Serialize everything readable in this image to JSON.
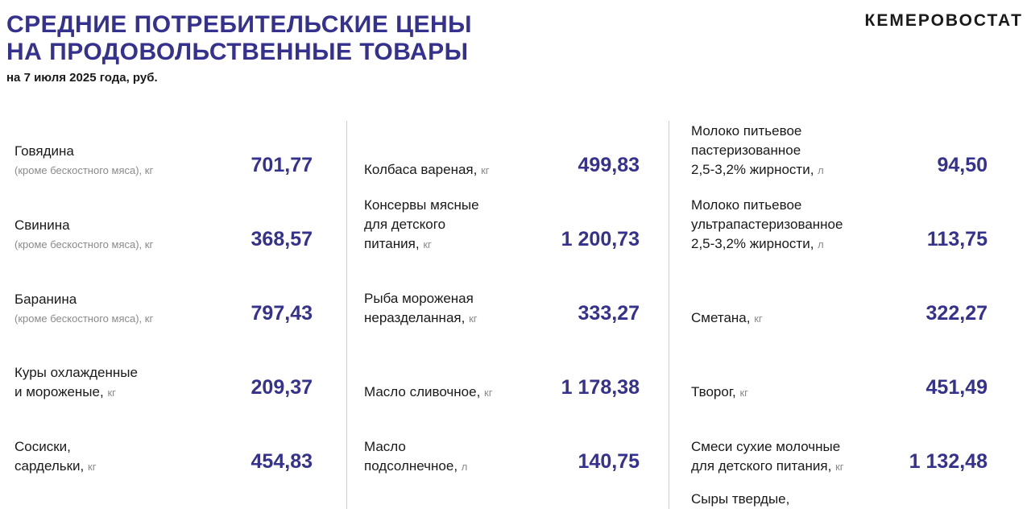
{
  "header": {
    "title_line1": "СРЕДНИЕ ПОТРЕБИТЕЛЬСКИЕ ЦЕНЫ",
    "title_line2": "НА ПРОДОВОЛЬСТВЕННЫЕ ТОВАРЫ",
    "subtitle": "на 7 июля 2025 года, руб.",
    "brand": "КЕМЕРОВОСТАТ"
  },
  "colors": {
    "accent": "#35318f",
    "divider": "#cfcfcf",
    "muted": "#8a8a8a"
  },
  "columns": [
    {
      "items": [
        {
          "line1": "Говядина",
          "note": "(кроме бескостного мяса), кг",
          "price": "701,77"
        },
        {
          "line1": "Свинина",
          "note": "(кроме бескостного мяса), кг",
          "price": "368,57"
        },
        {
          "line1": "Баранина",
          "note": "(кроме бескостного мяса), кг",
          "price": "797,43"
        },
        {
          "line1": "Куры охлажденные",
          "line2": "и мороженые,",
          "unit": "кг",
          "price": "209,37"
        },
        {
          "line1": "Сосиски,",
          "line2": "сардельки,",
          "unit": "кг",
          "price": "454,83"
        }
      ]
    },
    {
      "items": [
        {
          "line1": "Колбаса вареная,",
          "unit": "кг",
          "price": "499,83"
        },
        {
          "line1": "Консервы мясные",
          "line2": "для детского",
          "line3": "питания,",
          "unit": "кг",
          "price": "1 200,73"
        },
        {
          "line1": "Рыба мороженая",
          "line2": "неразделанная,",
          "unit": "кг",
          "price": "333,27"
        },
        {
          "line1": "Масло сливочное,",
          "unit": "кг",
          "price": "1 178,38"
        },
        {
          "line1": "Масло",
          "line2": "подсолнечное,",
          "unit": "л",
          "price": "140,75"
        }
      ]
    },
    {
      "items": [
        {
          "line1": "Молоко питьевое",
          "line2": "пастеризованное",
          "line3": "2,5-3,2% жирности,",
          "unit": "л",
          "price": "94,50"
        },
        {
          "line1": "Молоко питьевое",
          "line2": "ультрапастеризованное",
          "line3": "2,5-3,2% жирности,",
          "unit": "л",
          "price": "113,75"
        },
        {
          "line1": "Сметана,",
          "unit": "кг",
          "price": "322,27"
        },
        {
          "line1": "Творог,",
          "unit": "кг",
          "price": "451,49"
        },
        {
          "line1": "Смеси сухие молочные",
          "line2": "для детского питания,",
          "unit": "кг",
          "price": "1 132,48"
        },
        {
          "line1": "Сыры твердые,"
        }
      ]
    }
  ]
}
